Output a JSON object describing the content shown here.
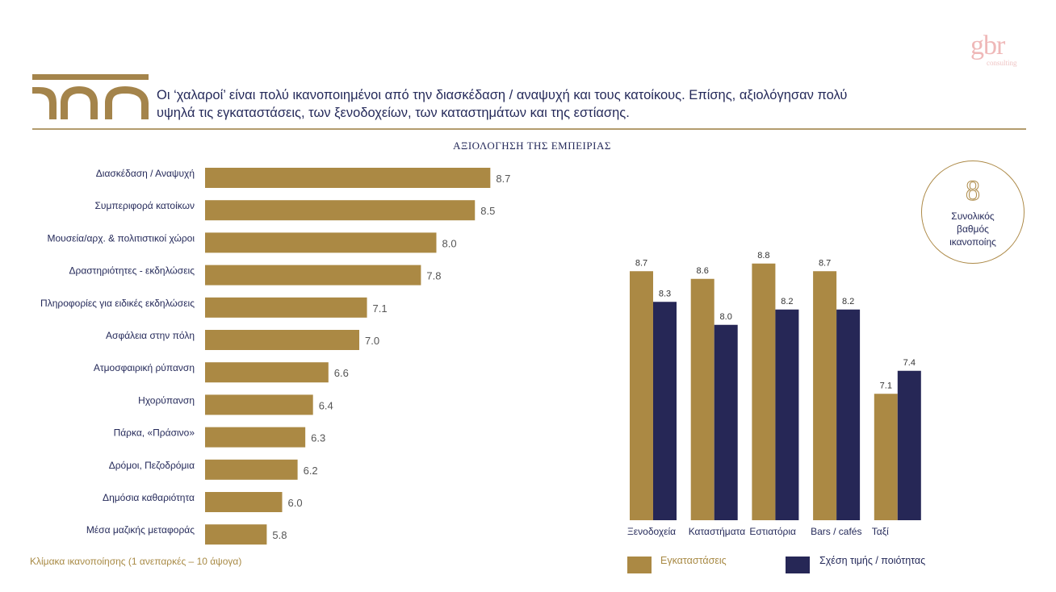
{
  "brand": {
    "logo_main": "gbr",
    "logo_sub": "consulting"
  },
  "header": {
    "headline_line1": "Οι ‘χαλαροί’ είναι πολύ ικανοποιημένοι από την διασκέδαση / αναψυχή και τους κατοίκους. Επίσης, αξιολόγησαν πολύ",
    "headline_line2": "υψηλά τις εγκαταστάσεις, των ξενοδοχείων, των καταστημάτων και της εστίασης."
  },
  "section_title": "ΑΞΙΟΛΟΓΗΣΗ ΤΗΣ ΕΜΠΕΙΡΙΑΣ",
  "scale_note": "Κλίμακα ικανοποίησης (1 ανεπαρκές – 10 άψογα)",
  "overall": {
    "score": "8",
    "label_line1": "Συνολικός",
    "label_line2": "βαθμός",
    "label_line3": "ικανοποίης"
  },
  "colors": {
    "gold": "#ab8944",
    "navy": "#262756",
    "text": "#252a5a",
    "value_text": "#555555"
  },
  "chart_data": [
    {
      "type": "bar",
      "orientation": "horizontal",
      "title": "ΑΞΙΟΛΟΓΗΣΗ ΤΗΣ ΕΜΠΕΙΡΙΑΣ",
      "categories": [
        "Διασκέδαση / Αναψυχή",
        "Συμπεριφορά κατοίκων",
        "Μουσεία/αρχ. & πολιτιστικοί χώροι",
        "Δραστηριότητες - εκδηλώσεις",
        "Πληροφορίες για ειδικές εκδηλώσεις",
        "Ασφάλεια στην πόλη",
        "Ατμοσφαιρική ρύπανση",
        "Ηχορύπανση",
        "Πάρκα, «Πράσινο»",
        "Δρόμοι, Πεζοδρόμια",
        "Δημόσια καθαριότητα",
        "Μέσα μαζικής μεταφοράς"
      ],
      "values": [
        8.7,
        8.5,
        8.0,
        7.8,
        7.1,
        7.0,
        6.6,
        6.4,
        6.3,
        6.2,
        6.0,
        5.8
      ],
      "value_labels": [
        "8.7",
        "8.5",
        "8.0",
        "7.8",
        "7.1",
        "7.0",
        "6.6",
        "6.4",
        "6.3",
        "6.2",
        "6.0",
        "5.8"
      ],
      "xlabel": "Κλίμακα ικανοποίησης (1 ανεπαρκές – 10 άψογα)",
      "ylabel": "",
      "xlim": [
        5.0,
        9.0
      ],
      "grid": false
    },
    {
      "type": "bar",
      "orientation": "vertical",
      "categories": [
        "Ξενοδοχεία",
        "Καταστήματα",
        "Εστιατόρια",
        "Bars / cafés",
        "Ταξί"
      ],
      "series": [
        {
          "name": "Εγκαταστάσεις",
          "values": [
            8.7,
            8.6,
            8.8,
            8.7,
            7.1
          ],
          "labels": [
            "8.7",
            "8.6",
            "8.8",
            "8.7",
            "7.1"
          ],
          "color": "#ab8944"
        },
        {
          "name": "Σχέση τιμής / ποιότητας",
          "values": [
            8.3,
            8.0,
            8.2,
            8.2,
            7.4
          ],
          "labels": [
            "8.3",
            "8.0",
            "8.2",
            "8.2",
            "7.4"
          ],
          "color": "#262756"
        }
      ],
      "ylim": [
        5.45,
        9.0
      ],
      "legend": "bottom",
      "grid": false
    }
  ]
}
